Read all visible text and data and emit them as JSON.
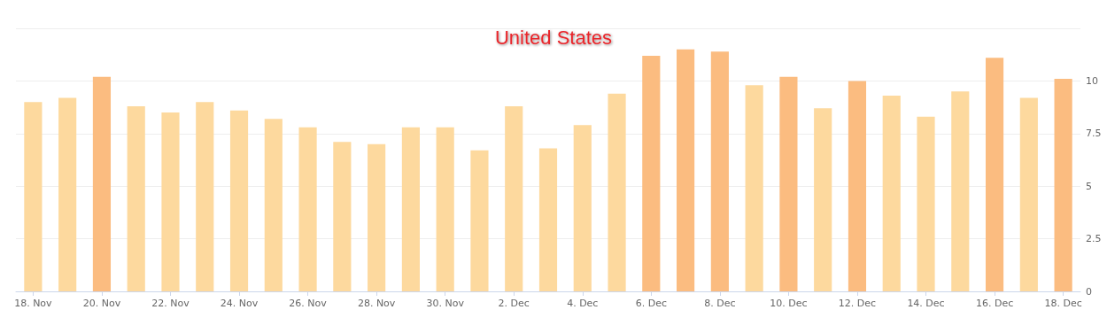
{
  "chart_data": {
    "type": "bar",
    "title": "United States",
    "categories": [
      "18. Nov",
      null,
      "20. Nov",
      null,
      "22. Nov",
      null,
      "24. Nov",
      null,
      "26. Nov",
      null,
      "28. Nov",
      null,
      "30. Nov",
      null,
      "2. Dec",
      null,
      "4. Dec",
      null,
      "6. Dec",
      null,
      "8. Dec",
      null,
      "10. Dec",
      null,
      "12. Dec",
      null,
      "14. Dec",
      null,
      "16. Dec",
      null,
      "18. Dec"
    ],
    "values": [
      9.0,
      9.2,
      10.2,
      8.8,
      8.5,
      9.0,
      8.6,
      8.2,
      7.8,
      7.1,
      7.0,
      7.8,
      7.8,
      6.7,
      8.8,
      6.8,
      7.9,
      9.4,
      11.2,
      11.5,
      11.4,
      9.8,
      10.2,
      8.7,
      10.0,
      9.3,
      8.3,
      9.5,
      11.1,
      9.2,
      10.1
    ],
    "colors": [
      "#fdd99e",
      "#fdd99e",
      "#fbbc80",
      "#fdd99e",
      "#fdd99e",
      "#fdd99e",
      "#fdd99e",
      "#fdd99e",
      "#fdd99e",
      "#fdd99e",
      "#fdd99e",
      "#fdd99e",
      "#fdd99e",
      "#fdd99e",
      "#fdd99e",
      "#fdd99e",
      "#fdd99e",
      "#fdd99e",
      "#fbbc80",
      "#fbbc80",
      "#fbbc80",
      "#fdd99e",
      "#fbbc80",
      "#fdd99e",
      "#fbbc80",
      "#fdd99e",
      "#fdd99e",
      "#fdd99e",
      "#fbbc80",
      "#fdd99e",
      "#fbbc80"
    ],
    "ylim": [
      0,
      12.5
    ],
    "yticks": [
      0,
      2.5,
      5,
      7.5,
      10,
      {
        "value": 12.5,
        "label": null
      }
    ],
    "grid": "y"
  }
}
